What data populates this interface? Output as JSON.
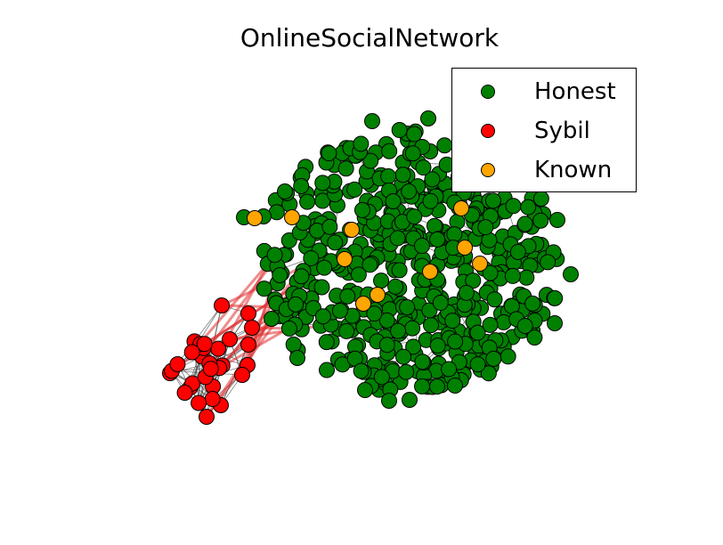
{
  "chart_data": {
    "type": "network",
    "title": "OnlineSocialNetwork",
    "legend": {
      "placement": "top-right",
      "entries": [
        {
          "label": "Honest",
          "color": "#008000"
        },
        {
          "label": "Sybil",
          "color": "#ff0000"
        },
        {
          "label": "Known",
          "color": "#ffa500"
        }
      ]
    },
    "colors": {
      "honest": "#008000",
      "sybil": "#ff0000",
      "known": "#ffa500",
      "edge": "#555555",
      "attack_edge": "#e03030"
    },
    "node_counts": {
      "honest": 500,
      "sybil": 30,
      "known": 10
    },
    "attack_edge_count": 20
  }
}
